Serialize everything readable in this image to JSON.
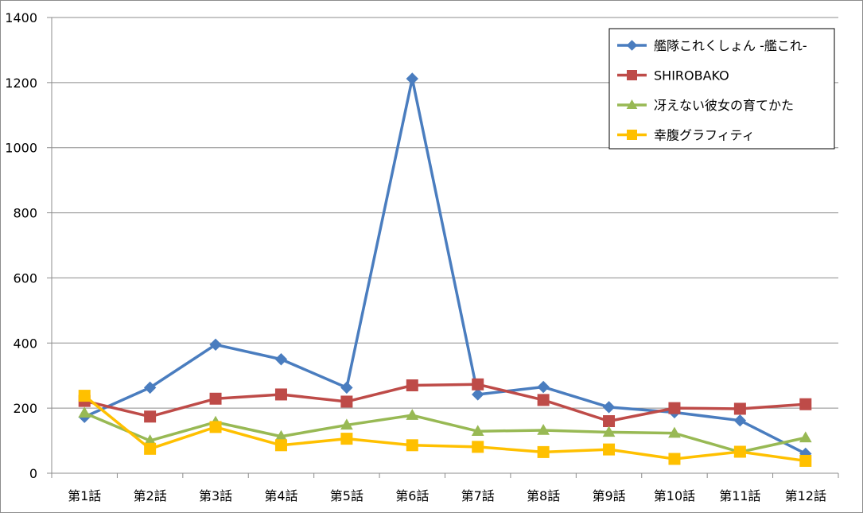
{
  "chart_data": {
    "type": "line",
    "categories": [
      "第1話",
      "第2話",
      "第3話",
      "第4話",
      "第5話",
      "第6話",
      "第7話",
      "第8話",
      "第9話",
      "第10話",
      "第11話",
      "第12話"
    ],
    "ylim": [
      0,
      1400
    ],
    "yticks": [
      0,
      200,
      400,
      600,
      800,
      1000,
      1200,
      1400
    ],
    "grid": true,
    "legend_position": "top-right",
    "series": [
      {
        "name": "艦隊これくしょん -艦これ-",
        "color": "#4a7dbf",
        "marker": "diamond",
        "values": [
          173,
          263,
          395,
          350,
          263,
          1212,
          242,
          265,
          203,
          187,
          162,
          60
        ]
      },
      {
        "name": "SHIROBAKO",
        "color": "#be4b48",
        "marker": "square",
        "values": [
          222,
          174,
          229,
          242,
          220,
          270,
          273,
          225,
          160,
          200,
          198,
          212
        ]
      },
      {
        "name": "冴えない彼女の育てかた",
        "color": "#98b954",
        "marker": "triangle",
        "values": [
          185,
          100,
          157,
          113,
          148,
          178,
          129,
          132,
          126,
          123,
          65,
          109
        ]
      },
      {
        "name": "幸腹グラフィティ",
        "color": "#ffc000",
        "marker": "square",
        "values": [
          238,
          75,
          142,
          86,
          106,
          86,
          81,
          65,
          73,
          44,
          66,
          38
        ]
      }
    ]
  }
}
